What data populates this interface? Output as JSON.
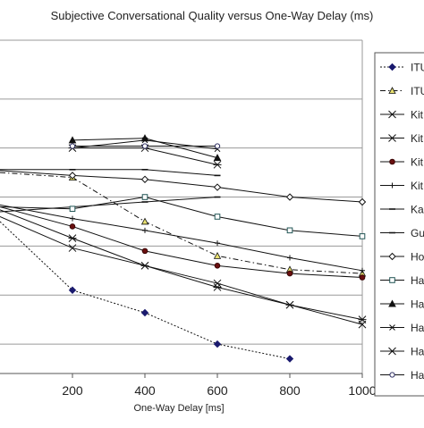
{
  "chart_data": {
    "type": "line",
    "title": "Subjective Conversational Quality versus One-Way Delay (ms)",
    "xlabel": "One-Way Delay [ms]",
    "ylabel": "",
    "xlim": [
      0,
      1000
    ],
    "ylim": [
      1.7,
      5.1
    ],
    "x_ticks": [
      "200",
      "400",
      "600",
      "800",
      "1000"
    ],
    "x_tick_values": [
      200,
      400,
      600,
      800,
      1000
    ],
    "y_gridlines": [
      2.0,
      2.5,
      3.0,
      3.5,
      4.0,
      4.5
    ],
    "grid": true,
    "legend_position": "right",
    "series": [
      {
        "name": "ITU",
        "marker": "diamond-filled",
        "line": "dotted",
        "points": [
          [
            0,
            3.25
          ],
          [
            200,
            2.55
          ],
          [
            400,
            2.32
          ],
          [
            600,
            2.0
          ],
          [
            800,
            1.85
          ]
        ]
      },
      {
        "name": "ITU",
        "marker": "triangle-yellow",
        "line": "dashdot",
        "points": [
          [
            0,
            3.75
          ],
          [
            200,
            3.7
          ],
          [
            400,
            3.25
          ],
          [
            600,
            2.9
          ],
          [
            800,
            2.76
          ],
          [
            1000,
            2.72
          ]
        ]
      },
      {
        "name": "Kit",
        "marker": "x",
        "line": "solid",
        "points": [
          [
            0,
            3.3
          ],
          [
            200,
            2.98
          ],
          [
            400,
            2.8
          ],
          [
            600,
            2.62
          ],
          [
            800,
            2.4
          ],
          [
            1000,
            2.2
          ]
        ]
      },
      {
        "name": "Kit",
        "marker": "asterisk",
        "line": "solid",
        "points": [
          [
            0,
            3.37
          ],
          [
            200,
            3.08
          ],
          [
            400,
            2.8
          ],
          [
            600,
            2.58
          ],
          [
            800,
            2.4
          ],
          [
            1000,
            2.25
          ]
        ]
      },
      {
        "name": "Kit",
        "marker": "circle-filled",
        "line": "solid",
        "points": [
          [
            0,
            3.4
          ],
          [
            200,
            3.2
          ],
          [
            400,
            2.95
          ],
          [
            600,
            2.8
          ],
          [
            800,
            2.72
          ],
          [
            1000,
            2.68
          ]
        ]
      },
      {
        "name": "Kit",
        "marker": "plus",
        "line": "solid",
        "points": [
          [
            0,
            3.42
          ],
          [
            200,
            3.28
          ],
          [
            400,
            3.16
          ],
          [
            600,
            3.03
          ],
          [
            800,
            2.88
          ],
          [
            1000,
            2.75
          ]
        ]
      },
      {
        "name": "Kar",
        "marker": "dash",
        "line": "solid",
        "points": [
          [
            0,
            3.78
          ],
          [
            200,
            3.78
          ],
          [
            400,
            3.78
          ],
          [
            600,
            3.72
          ]
        ]
      },
      {
        "name": "Gu",
        "marker": "dash",
        "line": "solid",
        "points": [
          [
            0,
            3.35
          ],
          [
            400,
            3.45
          ],
          [
            600,
            3.5
          ]
        ]
      },
      {
        "name": "Ho",
        "marker": "diamond-open",
        "line": "solid",
        "points": [
          [
            0,
            3.77
          ],
          [
            200,
            3.72
          ],
          [
            400,
            3.68
          ],
          [
            600,
            3.6
          ],
          [
            800,
            3.5
          ],
          [
            1000,
            3.45
          ]
        ]
      },
      {
        "name": "Ha",
        "marker": "square-open",
        "line": "solid",
        "points": [
          [
            0,
            3.4
          ],
          [
            200,
            3.38
          ],
          [
            400,
            3.5
          ],
          [
            600,
            3.3
          ],
          [
            800,
            3.16
          ],
          [
            1000,
            3.1
          ]
        ]
      },
      {
        "name": "Ha",
        "marker": "triangle-filled",
        "line": "solid",
        "points": [
          [
            200,
            4.08
          ],
          [
            400,
            4.1
          ],
          [
            600,
            3.9
          ]
        ]
      },
      {
        "name": "Ha",
        "marker": "x-small",
        "line": "solid",
        "points": [
          [
            200,
            4.0
          ],
          [
            400,
            4.08
          ],
          [
            600,
            3.99
          ]
        ]
      },
      {
        "name": "Ha",
        "marker": "asterisk",
        "line": "solid",
        "points": [
          [
            200,
            4.0
          ],
          [
            400,
            4.0
          ],
          [
            600,
            3.83
          ]
        ]
      },
      {
        "name": "Ha",
        "marker": "circle-open",
        "line": "solid",
        "points": [
          [
            200,
            4.02
          ],
          [
            400,
            4.02
          ],
          [
            600,
            4.02
          ]
        ]
      }
    ]
  }
}
